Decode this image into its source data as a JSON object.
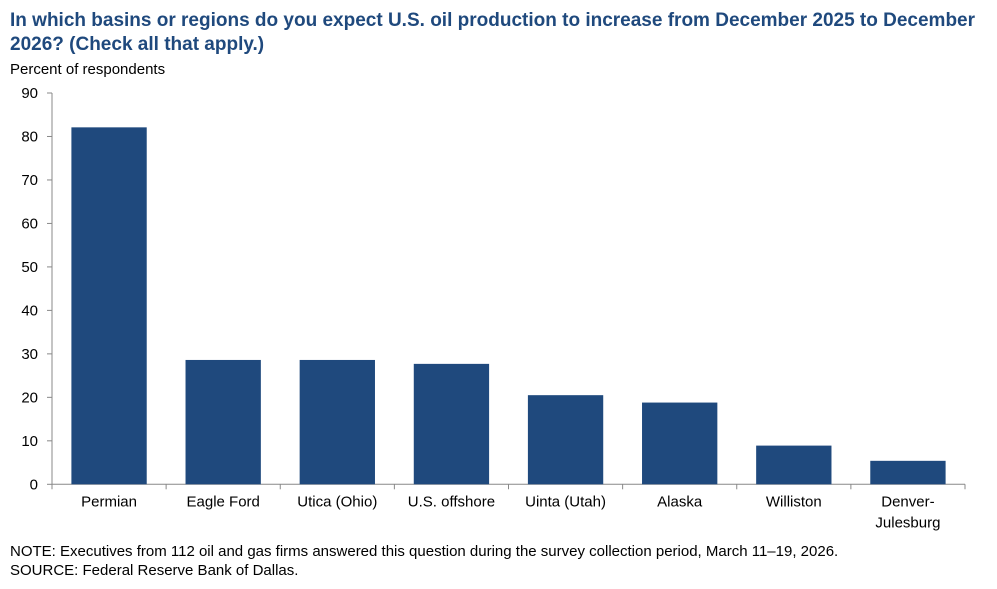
{
  "chart_data": {
    "type": "bar",
    "title": "In which basins or regions do you expect U.S. oil production to increase from December 2025 to December 2026? (Check all that apply.)",
    "ylabel": "Percent of respondents",
    "xlabel": "",
    "categories": [
      "Permian",
      "Eagle Ford",
      "Utica (Ohio)",
      "U.S. offshore",
      "Uinta (Utah)",
      "Alaska",
      "Williston",
      "Denver-\nJulesburg"
    ],
    "values": [
      82.1,
      28.6,
      28.6,
      27.7,
      20.5,
      18.8,
      8.9,
      5.4
    ],
    "ylim": [
      0,
      90
    ],
    "yticks": [
      0,
      10,
      20,
      30,
      40,
      50,
      60,
      70,
      80,
      90
    ],
    "grid": false,
    "legend": null,
    "bar_color": "#1f497d"
  },
  "notes": {
    "note": "NOTE:  Executives from 112 oil and gas firms answered this question during the survey collection period, March 11–19, 2026.",
    "source": "SOURCE:  Federal Reserve Bank of Dallas."
  }
}
